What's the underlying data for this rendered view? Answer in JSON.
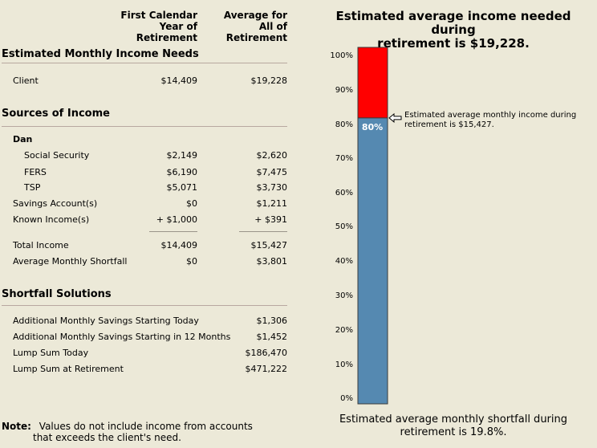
{
  "columns": {
    "first_year": [
      "First Calendar",
      "Year of",
      "Retirement"
    ],
    "average": [
      "Average for",
      "All of",
      "Retirement"
    ]
  },
  "income_needs": {
    "title": "Estimated Monthly Income Needs",
    "client_label": "Client",
    "client_first": "$14,409",
    "client_avg": "$19,228"
  },
  "sources": {
    "title": "Sources of Income",
    "person": "Dan",
    "rows": [
      {
        "label": "Social Security",
        "first": "$2,149",
        "avg": "$2,620"
      },
      {
        "label": "FERS",
        "first": "$6,190",
        "avg": "$7,475"
      },
      {
        "label": "TSP",
        "first": "$5,071",
        "avg": "$3,730"
      },
      {
        "label": "Savings Account(s)",
        "first": "$0",
        "avg": "$1,211"
      },
      {
        "label": "Known Income(s)",
        "first": "+ $1,000",
        "avg": "+ $391"
      }
    ],
    "total_label": "Total Income",
    "total_first": "$14,409",
    "total_avg": "$15,427",
    "shortfall_label": "Average Monthly Shortfall",
    "shortfall_first": "$0",
    "shortfall_avg": "$3,801"
  },
  "solutions": {
    "title": "Shortfall Solutions",
    "rows": [
      {
        "label": "Additional Monthly Savings Starting Today",
        "value": "$1,306"
      },
      {
        "label": "Additional Monthly Savings Starting in 12 Months",
        "value": "$1,452"
      },
      {
        "label": "Lump Sum Today",
        "value": "$186,470"
      },
      {
        "label": "Lump Sum at Retirement",
        "value": "$471,222"
      }
    ]
  },
  "note": {
    "label": "Note:",
    "text_line1": "Values do not include income from accounts",
    "text_line2": "that exceeds the client's need."
  },
  "chart_data": {
    "type": "bar",
    "title": "Estimated average income needed during\nretirement is $19,228.",
    "footer": "Estimated average monthly shortfall during\nretirement is 19.8%.",
    "yticks": [
      "100%",
      "90%",
      "80%",
      "70%",
      "60%",
      "50%",
      "40%",
      "30%",
      "20%",
      "10%",
      "0%"
    ],
    "ylim": [
      0,
      100
    ],
    "series": [
      {
        "value": 80.2,
        "color": "#5589b1",
        "label": "80%"
      },
      {
        "value": 19.8,
        "color": "#ff0000"
      }
    ],
    "annotation": "Estimated average monthly income during\nretirement is $15,427.",
    "colors": {
      "income": "#5589b1",
      "shortfall": "#ff0000"
    }
  }
}
